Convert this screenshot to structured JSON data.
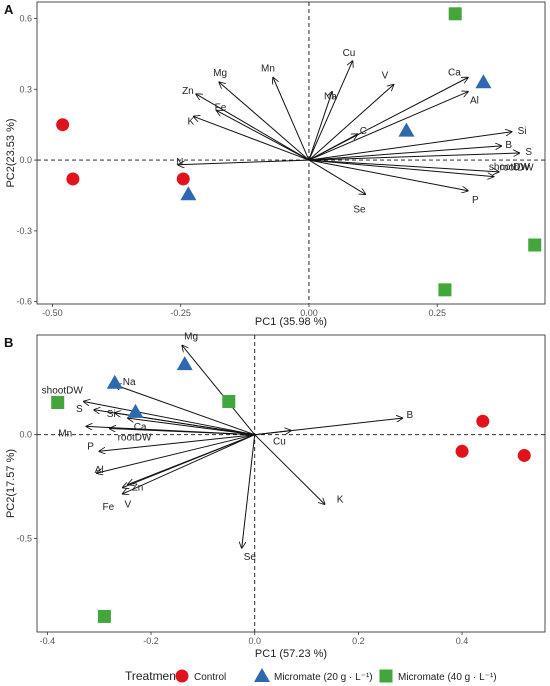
{
  "chart_data": [
    {
      "type": "scatter",
      "panel_label": "A",
      "xlabel": "PC1 (35.98 %)",
      "ylabel": "PC2(23.53 %)",
      "xlim": [
        -0.53,
        0.46
      ],
      "ylim": [
        -0.61,
        0.67
      ],
      "xticks": [
        "-0.50",
        "-0.25",
        "0.00",
        "0.25"
      ],
      "yticks": [
        "-0.6",
        "-0.3",
        "0.0",
        "0.3",
        "0.6"
      ],
      "series": [
        {
          "name": "Control",
          "points": [
            [
              -0.48,
              0.15
            ],
            [
              -0.46,
              -0.08
            ],
            [
              -0.245,
              -0.08
            ]
          ]
        },
        {
          "name": "Micromate (20 g · L⁻¹)",
          "points": [
            [
              -0.235,
              -0.145
            ],
            [
              0.19,
              0.125
            ],
            [
              0.34,
              0.33
            ]
          ]
        },
        {
          "name": "Micromate (40 g · L⁻¹)",
          "points": [
            [
              0.285,
              0.62
            ],
            [
              0.44,
              -0.36
            ],
            [
              0.265,
              -0.55
            ]
          ]
        }
      ],
      "loadings": [
        {
          "label": "Mg",
          "x": -0.175,
          "y": 0.33
        },
        {
          "label": "Mn",
          "x": -0.07,
          "y": 0.35
        },
        {
          "label": "Cu",
          "x": 0.085,
          "y": 0.42
        },
        {
          "label": "Na",
          "x": 0.045,
          "y": 0.29
        },
        {
          "label": "V",
          "x": 0.165,
          "y": 0.32
        },
        {
          "label": "Ca",
          "x": 0.31,
          "y": 0.35
        },
        {
          "label": "Al",
          "x": 0.31,
          "y": 0.29
        },
        {
          "label": "Zn",
          "x": -0.22,
          "y": 0.28
        },
        {
          "label": "Fe",
          "x": -0.18,
          "y": 0.21
        },
        {
          "label": "K",
          "x": -0.225,
          "y": 0.185
        },
        {
          "label": "N",
          "x": -0.255,
          "y": -0.02
        },
        {
          "label": "C",
          "x": 0.095,
          "y": 0.11
        },
        {
          "label": "Si",
          "x": 0.395,
          "y": 0.12
        },
        {
          "label": "B",
          "x": 0.375,
          "y": 0.06
        },
        {
          "label": "S",
          "x": 0.41,
          "y": 0.03
        },
        {
          "label": "shootDW",
          "x": 0.37,
          "y": -0.05
        },
        {
          "label": "rootDW",
          "x": 0.36,
          "y": -0.07
        },
        {
          "label": "P",
          "x": 0.31,
          "y": -0.13
        },
        {
          "label": "Se",
          "x": 0.11,
          "y": -0.145
        }
      ]
    },
    {
      "type": "scatter",
      "panel_label": "B",
      "xlabel": "PC1 (57.23 %)",
      "ylabel": "PC2(17.57 %)",
      "xlim": [
        -0.42,
        0.56
      ],
      "ylim": [
        -0.95,
        0.48
      ],
      "xticks": [
        "-0.4",
        "-0.2",
        "0.0",
        "0.2",
        "0.4"
      ],
      "yticks": [
        "-0.5",
        "0.0"
      ],
      "series": [
        {
          "name": "Control",
          "points": [
            [
              0.44,
              0.065
            ],
            [
              0.4,
              -0.08
            ],
            [
              0.52,
              -0.1
            ]
          ]
        },
        {
          "name": "Micromate (20 g · L⁻¹)",
          "points": [
            [
              -0.27,
              0.25
            ],
            [
              -0.135,
              0.34
            ],
            [
              -0.23,
              0.11
            ]
          ]
        },
        {
          "name": "Micromate (40 g · L⁻¹)",
          "points": [
            [
              -0.38,
              0.155
            ],
            [
              -0.05,
              0.16
            ],
            [
              -0.29,
              -0.875
            ]
          ]
        }
      ],
      "loadings": [
        {
          "label": "Mg",
          "x": -0.14,
          "y": 0.43
        },
        {
          "label": "Na",
          "x": -0.27,
          "y": 0.24
        },
        {
          "label": "shootDW",
          "x": -0.33,
          "y": 0.16
        },
        {
          "label": "S",
          "x": -0.31,
          "y": 0.12
        },
        {
          "label": "Si",
          "x": -0.27,
          "y": 0.105
        },
        {
          "label": "Ca",
          "x": -0.245,
          "y": 0.08
        },
        {
          "label": "Mn",
          "x": -0.325,
          "y": 0.04
        },
        {
          "label": "rootDW",
          "x": -0.28,
          "y": 0.03
        },
        {
          "label": "P",
          "x": -0.3,
          "y": -0.08
        },
        {
          "label": "Al",
          "x": -0.305,
          "y": -0.185
        },
        {
          "label": "Zn",
          "x": -0.245,
          "y": -0.24
        },
        {
          "label": "Fe",
          "x": -0.255,
          "y": -0.285
        },
        {
          "label": "V",
          "x": -0.255,
          "y": -0.255
        },
        {
          "label": "B",
          "x": 0.285,
          "y": 0.08
        },
        {
          "label": "Cu",
          "x": 0.07,
          "y": 0.02
        },
        {
          "label": "K",
          "x": 0.135,
          "y": -0.335
        },
        {
          "label": "Se",
          "x": -0.025,
          "y": -0.545
        }
      ]
    }
  ],
  "legend": {
    "title": "Treatment",
    "items": [
      {
        "label": "Control",
        "shape": "circle",
        "color": "#e2121d"
      },
      {
        "label": "Micromate (20 g · L⁻¹)",
        "shape": "triangle",
        "color": "#2e69b0"
      },
      {
        "label": "Micromate (40 g · L⁻¹)",
        "shape": "square",
        "color": "#42a63d"
      }
    ]
  },
  "colors": {
    "control": "#e2121d",
    "m20": "#2e69b0",
    "m40": "#42a63d"
  }
}
